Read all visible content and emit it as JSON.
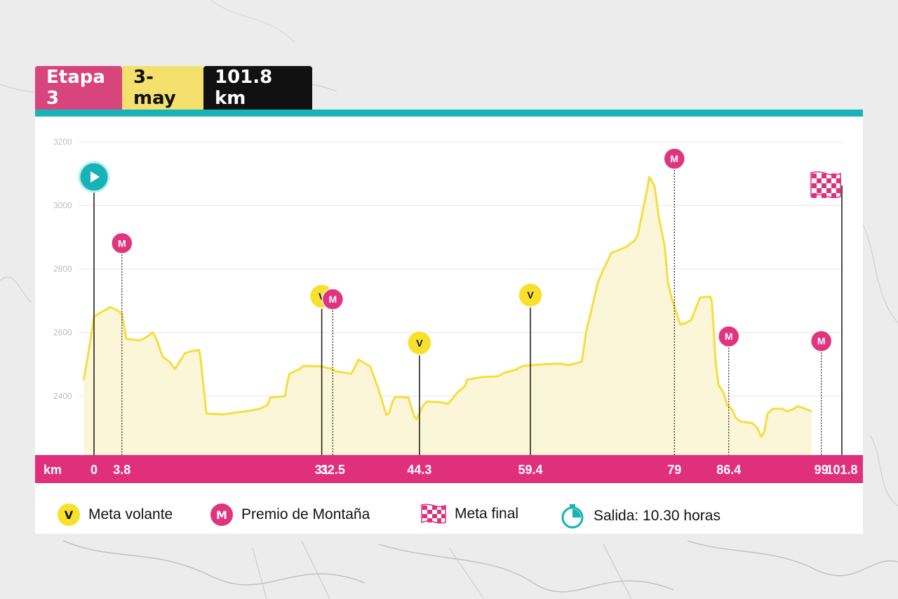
{
  "header": {
    "stage_label": "Etapa 3",
    "date_label": "3-may",
    "distance_label": "101.8 km"
  },
  "colors": {
    "stage_tab": "#d8457d",
    "date_tab": "#f4e06d",
    "distance_tab": "#111111",
    "teal": "#17b3b6",
    "profile_line": "#f7dd3f",
    "profile_fill": "#fcf6d8",
    "km_bar": "#e0307c",
    "mountain_badge": "#e1347e",
    "sprint_badge": "#f8e02d"
  },
  "icons": {
    "start": "play-icon",
    "finish": "checkered-flag-icon",
    "sprint": "v-badge-icon",
    "mountain": "m-badge-icon",
    "timer": "stopwatch-icon"
  },
  "chart_data": {
    "type": "area",
    "title": "",
    "xlabel": "km",
    "ylabel": "",
    "xlim": [
      0,
      101.8
    ],
    "ylim": [
      2230,
      3230
    ],
    "yticks": [
      2400,
      2600,
      2800,
      3000,
      3200
    ],
    "grid": true,
    "profile": [
      [
        -1.4,
        2450
      ],
      [
        -0.8,
        2530
      ],
      [
        0,
        2650
      ],
      [
        0.7,
        2660
      ],
      [
        2.2,
        2680
      ],
      [
        3.1,
        2670
      ],
      [
        3.8,
        2660
      ],
      [
        4.4,
        2580
      ],
      [
        6.2,
        2575
      ],
      [
        7.1,
        2585
      ],
      [
        8.0,
        2600
      ],
      [
        8.5,
        2580
      ],
      [
        9.3,
        2525
      ],
      [
        10.4,
        2505
      ],
      [
        11.0,
        2485
      ],
      [
        12.4,
        2535
      ],
      [
        13.0,
        2540
      ],
      [
        14.3,
        2545
      ],
      [
        14.5,
        2520
      ],
      [
        15.3,
        2345
      ],
      [
        17.6,
        2342
      ],
      [
        19.3,
        2348
      ],
      [
        21.0,
        2353
      ],
      [
        22.6,
        2360
      ],
      [
        23.6,
        2372
      ],
      [
        24.0,
        2395
      ],
      [
        26.0,
        2400
      ],
      [
        26.3,
        2442
      ],
      [
        26.6,
        2470
      ],
      [
        28.0,
        2485
      ],
      [
        28.5,
        2495
      ],
      [
        31.0,
        2493
      ],
      [
        32.4,
        2485
      ],
      [
        32.9,
        2478
      ],
      [
        35.0,
        2470
      ],
      [
        35.5,
        2490
      ],
      [
        36.0,
        2515
      ],
      [
        37.6,
        2493
      ],
      [
        38.6,
        2430
      ],
      [
        39.8,
        2340
      ],
      [
        40.2,
        2348
      ],
      [
        40.6,
        2380
      ],
      [
        41.0,
        2398
      ],
      [
        42.8,
        2395
      ],
      [
        43.6,
        2335
      ],
      [
        43.9,
        2327
      ],
      [
        44.8,
        2370
      ],
      [
        45.3,
        2383
      ],
      [
        47.4,
        2380
      ],
      [
        48.2,
        2375
      ],
      [
        49.5,
        2412
      ],
      [
        50.5,
        2432
      ],
      [
        50.8,
        2452
      ],
      [
        52.9,
        2460
      ],
      [
        55.0,
        2462
      ],
      [
        55.8,
        2473
      ],
      [
        57.4,
        2483
      ],
      [
        58.4,
        2495
      ],
      [
        61.2,
        2500
      ],
      [
        63.6,
        2502
      ],
      [
        64.6,
        2497
      ],
      [
        66.4,
        2508
      ],
      [
        66.6,
        2540
      ],
      [
        67.0,
        2605
      ],
      [
        67.6,
        2660
      ],
      [
        68.6,
        2760
      ],
      [
        69.2,
        2790
      ],
      [
        70.4,
        2850
      ],
      [
        72.0,
        2865
      ],
      [
        72.5,
        2870
      ],
      [
        73.6,
        2890
      ],
      [
        74.0,
        2905
      ],
      [
        75.2,
        3040
      ],
      [
        75.6,
        3090
      ],
      [
        76.3,
        3060
      ],
      [
        76.9,
        2960
      ],
      [
        77.7,
        2870
      ],
      [
        78.1,
        2760
      ],
      [
        78.6,
        2710
      ],
      [
        79.8,
        2625
      ],
      [
        80.6,
        2630
      ],
      [
        81.3,
        2640
      ],
      [
        82.5,
        2710
      ],
      [
        83.9,
        2713
      ],
      [
        84.1,
        2695
      ],
      [
        84.3,
        2630
      ],
      [
        84.6,
        2510
      ],
      [
        85.0,
        2435
      ],
      [
        85.7,
        2410
      ],
      [
        86.2,
        2370
      ],
      [
        86.8,
        2360
      ],
      [
        87.3,
        2333
      ],
      [
        88.0,
        2320
      ],
      [
        89.6,
        2315
      ],
      [
        90.3,
        2300
      ],
      [
        90.8,
        2272
      ],
      [
        91.2,
        2285
      ],
      [
        91.7,
        2345
      ],
      [
        92.4,
        2360
      ],
      [
        93.7,
        2360
      ],
      [
        94.3,
        2352
      ],
      [
        95.3,
        2360
      ],
      [
        95.8,
        2368
      ],
      [
        96.8,
        2360
      ],
      [
        97.7,
        2352
      ]
    ],
    "km_ticks": [
      0,
      3.8,
      31,
      32.5,
      44.3,
      59.4,
      79,
      86.4,
      99,
      101.8
    ],
    "markers": [
      {
        "type": "start",
        "km": 0
      },
      {
        "type": "mountain",
        "km": 3.8,
        "label": "M"
      },
      {
        "type": "sprint",
        "km": 31,
        "label": "V"
      },
      {
        "type": "mountain",
        "km": 32.5,
        "label": "M"
      },
      {
        "type": "sprint",
        "km": 44.3,
        "label": "V"
      },
      {
        "type": "sprint",
        "km": 59.4,
        "label": "V"
      },
      {
        "type": "mountain",
        "km": 79,
        "label": "M"
      },
      {
        "type": "mountain",
        "km": 86.4,
        "label": "M"
      },
      {
        "type": "mountain",
        "km": 99,
        "label": "M"
      },
      {
        "type": "finish",
        "km": 101.8
      }
    ]
  },
  "legend": {
    "sprint_badge": "V",
    "sprint_label": "Meta volante",
    "mountain_badge": "M",
    "mountain_label": "Premio de Montaña",
    "finish_label": "Meta final",
    "start_label": "Salida: 10.30 horas"
  }
}
